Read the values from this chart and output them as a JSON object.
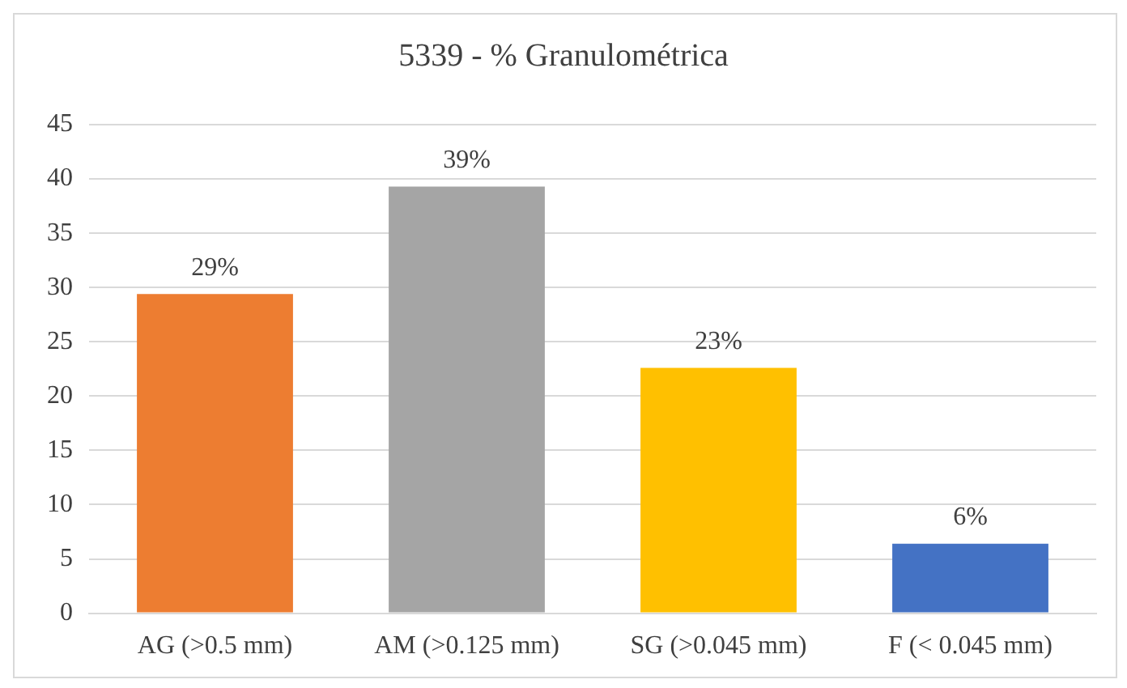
{
  "chart_data": {
    "type": "bar",
    "title": "5339 - % Granulométrica",
    "categories": [
      "AG (>0.5 mm)",
      "AM (>0.125 mm)",
      "SG (>0.045 mm)",
      "F (< 0.045 mm)"
    ],
    "values": [
      29.4,
      39.3,
      22.6,
      6.4
    ],
    "colors": [
      "#ed7d31",
      "#a5a5a5",
      "#ffc000",
      "#4472c4"
    ],
    "value_labels": [
      "29%",
      "39%",
      "23%",
      "6%"
    ],
    "ylim": [
      0,
      45
    ],
    "yticks": [
      0,
      5,
      10,
      15,
      20,
      25,
      30,
      35,
      40,
      45
    ],
    "grid": "y",
    "legend": false
  }
}
